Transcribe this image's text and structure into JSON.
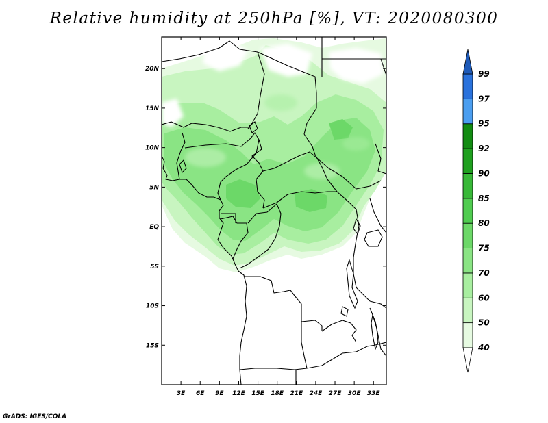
{
  "title": "Relative humidity at 250hPa [%], VT: 2020080300",
  "credit": "GrADS: IGES/COLA",
  "chart_data": {
    "type": "filled-contour map",
    "title": "Relative humidity at 250hPa [%], VT: 2020080300",
    "variable": "Relative humidity",
    "level": "250hPa",
    "units": "%",
    "valid_time": "2020080300",
    "region": "Central & West Africa",
    "lon_range": [
      0,
      35
    ],
    "lat_range": [
      -20,
      24
    ],
    "x_ticks": [
      "3E",
      "6E",
      "9E",
      "12E",
      "15E",
      "18E",
      "21E",
      "24E",
      "27E",
      "30E",
      "33E"
    ],
    "x_tick_values": [
      3,
      6,
      9,
      12,
      15,
      18,
      21,
      24,
      27,
      30,
      33
    ],
    "y_ticks": [
      "20N",
      "15N",
      "10N",
      "5N",
      "EQ",
      "5S",
      "10S",
      "15S"
    ],
    "y_tick_values": [
      20,
      15,
      10,
      5,
      0,
      -5,
      -10,
      -15
    ],
    "colorbar": {
      "levels": [
        "40",
        "50",
        "60",
        "70",
        "75",
        "80",
        "85",
        "90",
        "92",
        "95",
        "97",
        "99"
      ],
      "colors": [
        "#ffffff",
        "#e6fae1",
        "#c8f5c0",
        "#a8eea0",
        "#8ae484",
        "#6cd868",
        "#50cc50",
        "#38b838",
        "#1fa01f",
        "#128c12",
        "#4b9ef0",
        "#2a72dc",
        "#1e5ab8"
      ]
    },
    "observed_max_shading": "75-80 (light green)",
    "dry_region": "Southern Africa south of ~5S and parts of the Sahara near 20N are below 40%"
  }
}
